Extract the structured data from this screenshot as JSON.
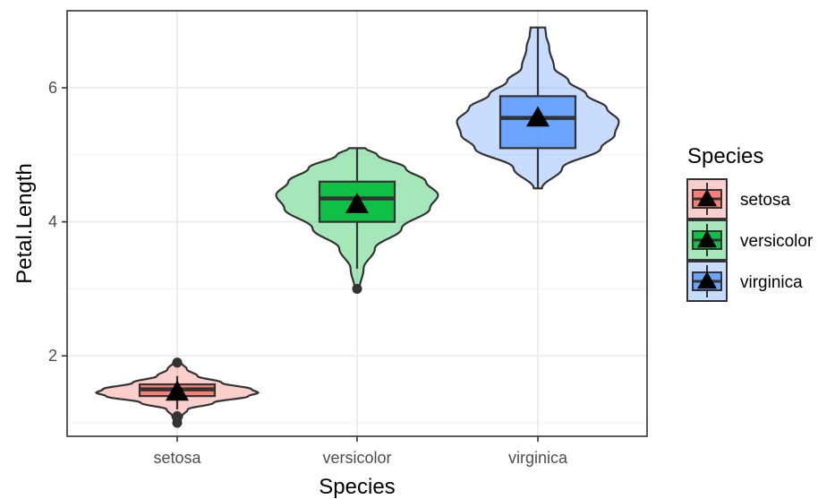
{
  "chart_data": {
    "type": "violin-box",
    "xlabel": "Species",
    "ylabel": "Petal.Length",
    "ylim": [
      0.8,
      7.15
    ],
    "yticks": [
      2,
      4,
      6
    ],
    "grid": true,
    "legend": {
      "title": "Species",
      "position": "right"
    },
    "colors": {
      "setosa": "#f8766d",
      "versicolor": "#00ba38",
      "virginica": "#619cff"
    },
    "categories": [
      "setosa",
      "versicolor",
      "virginica"
    ],
    "series": [
      {
        "name": "setosa",
        "min": 1.0,
        "q1": 1.4,
        "median": 1.5,
        "q3": 1.575,
        "max": 1.9,
        "whisker_low": 1.2,
        "whisker_high": 1.7,
        "mean": 1.462,
        "outliers": [
          1.0,
          1.1,
          1.9,
          1.9
        ],
        "violin": [
          [
            1.0,
            0.03
          ],
          [
            1.1,
            0.06
          ],
          [
            1.2,
            0.13
          ],
          [
            1.3,
            0.45
          ],
          [
            1.4,
            0.88
          ],
          [
            1.45,
            1.0
          ],
          [
            1.5,
            0.92
          ],
          [
            1.6,
            0.55
          ],
          [
            1.7,
            0.25
          ],
          [
            1.8,
            0.12
          ],
          [
            1.9,
            0.05
          ]
        ]
      },
      {
        "name": "versicolor",
        "min": 3.0,
        "q1": 4.0,
        "median": 4.35,
        "q3": 4.6,
        "max": 5.1,
        "whisker_low": 3.3,
        "whisker_high": 5.1,
        "mean": 4.26,
        "outliers": [
          3.0
        ],
        "violin": [
          [
            3.0,
            0.03
          ],
          [
            3.3,
            0.08
          ],
          [
            3.6,
            0.22
          ],
          [
            3.9,
            0.55
          ],
          [
            4.2,
            0.9
          ],
          [
            4.4,
            1.0
          ],
          [
            4.6,
            0.85
          ],
          [
            4.8,
            0.6
          ],
          [
            5.0,
            0.25
          ],
          [
            5.1,
            0.1
          ]
        ]
      },
      {
        "name": "virginica",
        "min": 4.5,
        "q1": 5.1,
        "median": 5.55,
        "q3": 5.875,
        "max": 6.9,
        "whisker_low": 4.5,
        "whisker_high": 6.9,
        "mean": 5.552,
        "outliers": [],
        "violin": [
          [
            4.5,
            0.05
          ],
          [
            4.8,
            0.3
          ],
          [
            5.1,
            0.78
          ],
          [
            5.3,
            0.95
          ],
          [
            5.5,
            1.0
          ],
          [
            5.7,
            0.85
          ],
          [
            5.9,
            0.6
          ],
          [
            6.1,
            0.38
          ],
          [
            6.3,
            0.2
          ],
          [
            6.6,
            0.14
          ],
          [
            6.8,
            0.1
          ],
          [
            6.9,
            0.09
          ]
        ]
      }
    ]
  }
}
